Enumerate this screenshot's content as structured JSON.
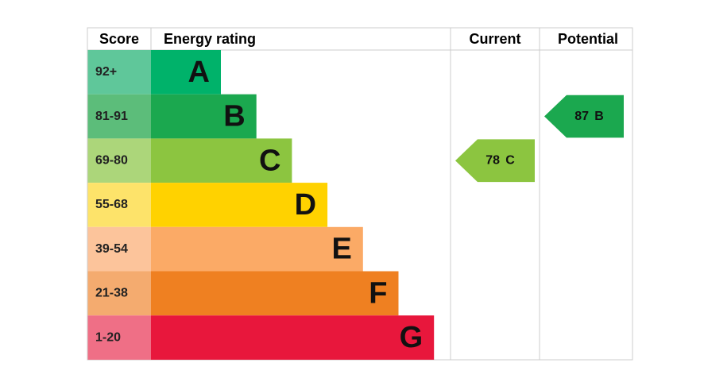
{
  "header": {
    "score": "Score",
    "rating": "Energy rating",
    "current": "Current",
    "potential": "Potential"
  },
  "bands": [
    {
      "score": "92+",
      "letter": "A",
      "color": "#00b26a",
      "score_color": "#5fc79a"
    },
    {
      "score": "81-91",
      "letter": "B",
      "color": "#1ba84f",
      "score_color": "#5cbd7a"
    },
    {
      "score": "69-80",
      "letter": "C",
      "color": "#8cc540",
      "score_color": "#acd67a"
    },
    {
      "score": "55-68",
      "letter": "D",
      "color": "#ffd200",
      "score_color": "#fde36a"
    },
    {
      "score": "39-54",
      "letter": "E",
      "color": "#fbaa66",
      "score_color": "#fcc49b"
    },
    {
      "score": "21-38",
      "letter": "F",
      "color": "#ef8021",
      "score_color": "#f4ab6f"
    },
    {
      "score": "1-20",
      "letter": "G",
      "color": "#e8173c",
      "score_color": "#ef6f86"
    }
  ],
  "current": {
    "value": 78,
    "band": "C"
  },
  "potential": {
    "value": 87,
    "band": "B"
  }
}
